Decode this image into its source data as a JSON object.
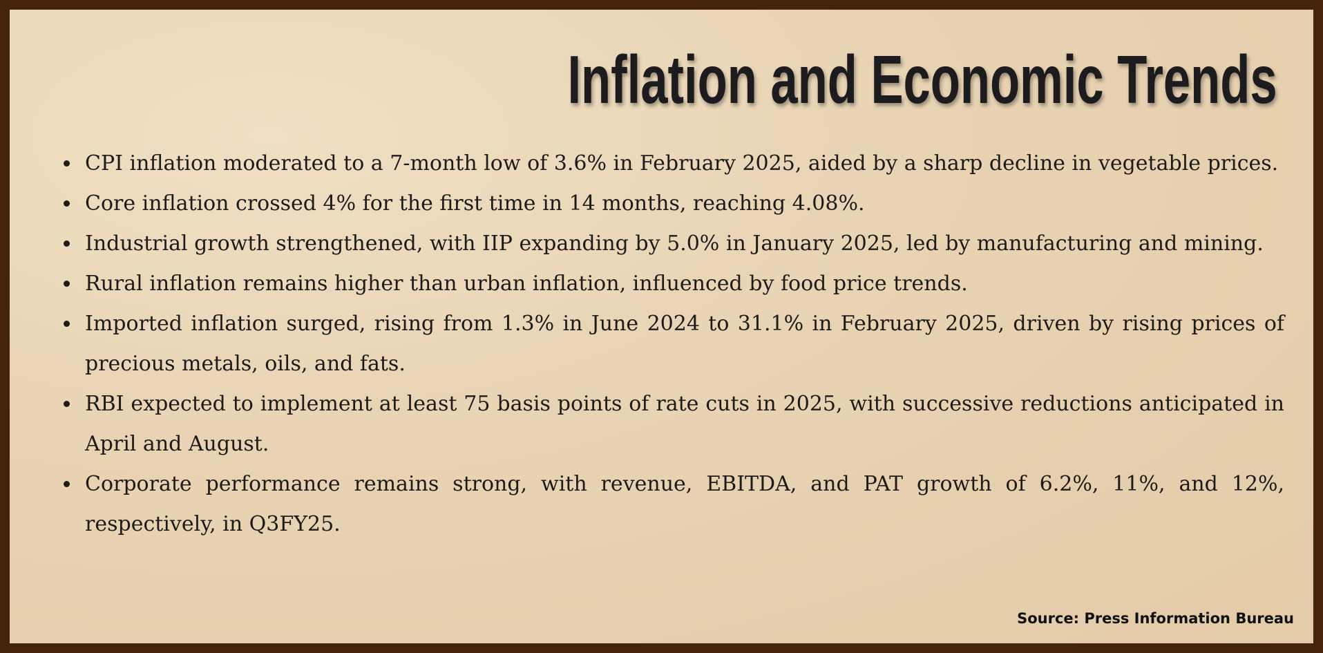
{
  "header": {
    "title": "Inflation and Economic Trends"
  },
  "bullets": [
    "CPI inflation moderated to a 7-month low of 3.6% in February 2025, aided by a sharp decline in vegetable prices.",
    "Core inflation crossed 4% for the first time in 14 months, reaching 4.08%.",
    "Industrial growth strengthened, with IIP expanding by 5.0% in January 2025, led by manufacturing and mining.",
    "Rural inflation remains higher than urban inflation, influenced by food price trends.",
    "Imported inflation surged, rising from 1.3% in June 2024 to 31.1% in February 2025, driven by rising prices of precious metals, oils, and fats.",
    "RBI expected to implement at least 75 basis points of rate cuts in 2025, with successive reductions anticipated in April and August.",
    "Corporate performance remains strong, with revenue, EBITDA, and PAT growth of 6.2%, 11%, and 12%, respectively, in Q3FY25."
  ],
  "footer": {
    "source": "Source: Press Information Bureau"
  }
}
